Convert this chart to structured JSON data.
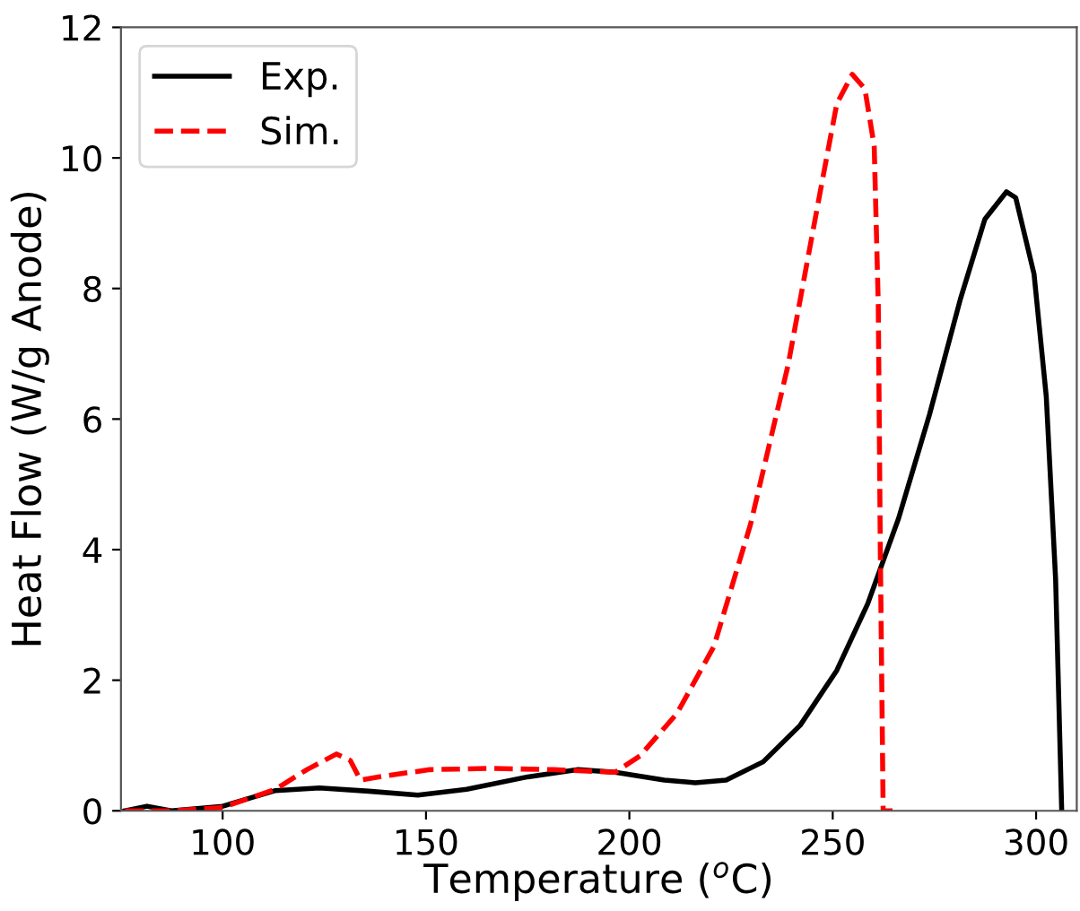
{
  "chart_data": {
    "type": "line",
    "xlabel": "Temperature ($^{o}$C)",
    "ylabel": "Heat Flow (W/g Anode)",
    "xlim": [
      75,
      310
    ],
    "xticks": [
      100,
      150,
      200,
      250,
      300
    ],
    "ylim": [
      0,
      12
    ],
    "yticks": [
      0,
      2,
      4,
      6,
      8,
      10,
      12
    ],
    "grid": false,
    "legend": "top left",
    "series": [
      {
        "name": "Exp.",
        "color": "#000000",
        "line_style": "solid",
        "x": [
          76,
          81.4,
          87.4,
          100,
          113,
          123.8,
          135.9,
          148,
          160,
          175,
          187.4,
          196.5,
          208.6,
          216.2,
          223.8,
          232.9,
          242,
          251,
          258.6,
          266.2,
          273.8,
          281.4,
          287.4,
          292.7,
          295,
          299.5,
          302.5,
          304.8,
          306.3
        ],
        "values": [
          0,
          0.07,
          0,
          0.07,
          0.31,
          0.35,
          0.3,
          0.24,
          0.33,
          0.52,
          0.63,
          0.59,
          0.47,
          0.43,
          0.47,
          0.75,
          1.31,
          2.15,
          3.17,
          4.48,
          6.07,
          7.84,
          9.06,
          9.48,
          9.39,
          8.22,
          6.35,
          3.55,
          0
        ]
      },
      {
        "name": "Sim.",
        "color": "#ff0000",
        "line_style": "dashed",
        "x": [
          76,
          87.4,
          100,
          113,
          120.7,
          128,
          131.4,
          133.9,
          140.5,
          151,
          166,
          181.4,
          196.5,
          202.6,
          211.7,
          220.8,
          229.8,
          239,
          246.5,
          251,
          254.8,
          257.9,
          260.2,
          261.2,
          261.7,
          262.4,
          264.7
        ],
        "values": [
          0,
          0,
          0.05,
          0.33,
          0.63,
          0.87,
          0.77,
          0.47,
          0.54,
          0.63,
          0.65,
          0.63,
          0.59,
          0.84,
          1.49,
          2.52,
          4.39,
          6.82,
          9.34,
          10.83,
          11.28,
          11.06,
          10.18,
          7.75,
          4.01,
          0,
          0
        ]
      }
    ]
  }
}
